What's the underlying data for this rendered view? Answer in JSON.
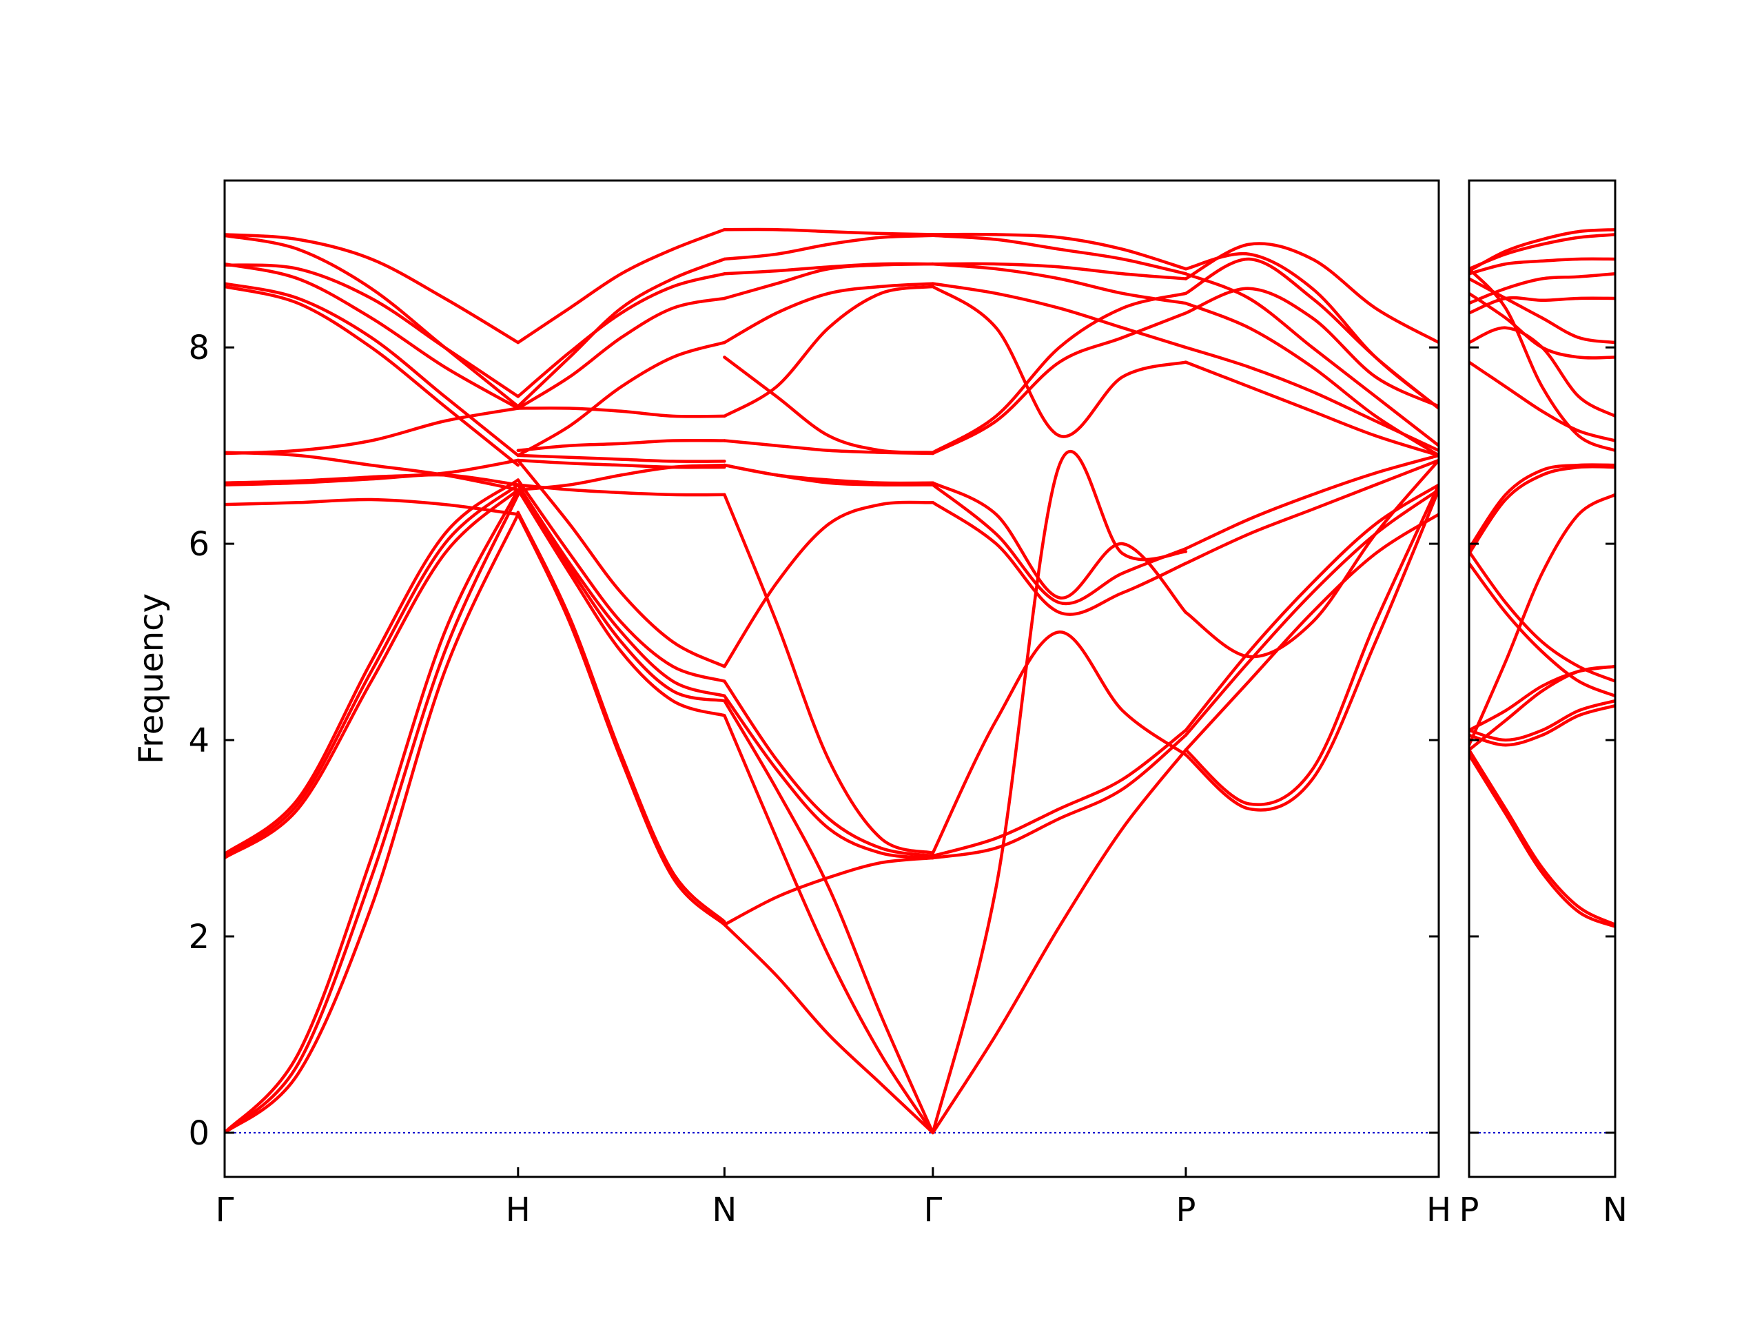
{
  "chart_data": {
    "type": "line",
    "ylabel": "Frequency",
    "xlabel": "",
    "ylim": [
      -0.45,
      9.7
    ],
    "yticks": [
      0,
      2,
      4,
      6,
      8
    ],
    "grid": false,
    "band_color": "#ff0000",
    "zero_line_color": "#0000cc",
    "panels": [
      {
        "name": "main",
        "xlim": [
          0,
          6
        ],
        "xticks": [
          {
            "label": "Γ",
            "x": 0.0
          },
          {
            "label": "H",
            "x": 1.45
          },
          {
            "label": "N",
            "x": 2.47
          },
          {
            "label": "Γ",
            "x": 3.5
          },
          {
            "label": "P",
            "x": 4.75
          },
          {
            "label": "H",
            "x": 6.0
          }
        ],
        "segments": [
          {
            "x0": 0.0,
            "x1": 1.45,
            "bands": [
              [
                0,
                0.6,
                2.3,
                4.7,
                6.3
              ],
              [
                0,
                0.7,
                2.6,
                4.9,
                6.5
              ],
              [
                0,
                0.8,
                2.8,
                5.1,
                6.55
              ],
              [
                2.8,
                3.3,
                4.6,
                5.9,
                6.55
              ],
              [
                2.82,
                3.35,
                4.7,
                6.0,
                6.6
              ],
              [
                2.84,
                3.4,
                4.8,
                6.1,
                6.65
              ],
              [
                6.4,
                6.42,
                6.45,
                6.4,
                6.3
              ],
              [
                6.6,
                6.62,
                6.66,
                6.7,
                6.6
              ],
              [
                6.62,
                6.64,
                6.68,
                6.72,
                6.85
              ],
              [
                6.92,
                6.95,
                7.05,
                7.25,
                7.38
              ],
              [
                6.93,
                6.9,
                6.8,
                6.7,
                6.55
              ],
              [
                8.65,
                8.5,
                8.1,
                7.5,
                6.9
              ],
              [
                8.62,
                8.45,
                8.0,
                7.4,
                6.8
              ],
              [
                8.85,
                8.7,
                8.3,
                7.8,
                7.38
              ],
              [
                8.84,
                8.8,
                8.5,
                8.0,
                7.5
              ],
              [
                9.15,
                9.1,
                8.9,
                8.5,
                8.05
              ],
              [
                9.14,
                9.0,
                8.6,
                8.0,
                7.4
              ]
            ]
          },
          {
            "x0": 1.45,
            "x1": 2.47,
            "bands": [
              [
                6.3,
                5.2,
                3.8,
                2.6,
                2.12
              ],
              [
                6.32,
                5.25,
                3.85,
                2.65,
                2.15
              ],
              [
                6.55,
                5.7,
                4.9,
                4.4,
                4.25
              ],
              [
                6.55,
                5.75,
                5.0,
                4.5,
                4.4
              ],
              [
                6.6,
                5.8,
                5.1,
                4.6,
                4.45
              ],
              [
                6.65,
                5.9,
                5.2,
                4.75,
                4.6
              ],
              [
                6.85,
                6.2,
                5.5,
                5.0,
                4.75
              ],
              [
                6.6,
                6.55,
                6.52,
                6.5,
                6.5
              ],
              [
                6.55,
                6.6,
                6.7,
                6.78,
                6.8
              ],
              [
                6.85,
                6.82,
                6.8,
                6.78,
                6.78
              ],
              [
                6.9,
                6.88,
                6.86,
                6.84,
                6.84
              ],
              [
                6.95,
                7.0,
                7.02,
                7.05,
                7.05
              ],
              [
                7.38,
                7.38,
                7.35,
                7.3,
                7.3
              ],
              [
                6.9,
                7.2,
                7.6,
                7.9,
                8.05
              ],
              [
                7.38,
                7.7,
                8.1,
                8.4,
                8.5
              ],
              [
                7.5,
                7.95,
                8.35,
                8.62,
                8.75
              ],
              [
                8.05,
                8.4,
                8.75,
                9.0,
                9.2
              ],
              [
                7.4,
                7.9,
                8.4,
                8.7,
                8.9
              ]
            ]
          },
          {
            "x0": 2.47,
            "x1": 3.5,
            "bands": [
              [
                2.12,
                1.6,
                1.0,
                0.5,
                0
              ],
              [
                2.12,
                2.4,
                2.6,
                2.75,
                2.8
              ],
              [
                4.25,
                3.0,
                1.8,
                0.8,
                0
              ],
              [
                4.4,
                3.5,
                2.5,
                1.2,
                0
              ],
              [
                4.45,
                3.7,
                3.1,
                2.85,
                2.8
              ],
              [
                4.6,
                3.8,
                3.2,
                2.9,
                2.82
              ],
              [
                4.75,
                5.6,
                6.2,
                6.4,
                6.42
              ],
              [
                6.5,
                5.2,
                3.8,
                3.0,
                2.85
              ],
              [
                6.8,
                6.7,
                6.62,
                6.6,
                6.6
              ],
              [
                6.8,
                6.7,
                6.65,
                6.62,
                6.62
              ],
              [
                7.05,
                7.0,
                6.95,
                6.93,
                6.92
              ],
              [
                7.3,
                7.6,
                8.2,
                8.55,
                8.62
              ],
              [
                7.9,
                7.5,
                7.1,
                6.95,
                6.93
              ],
              [
                8.05,
                8.35,
                8.55,
                8.62,
                8.65
              ],
              [
                8.5,
                8.65,
                8.8,
                8.84,
                8.85
              ],
              [
                8.75,
                8.78,
                8.82,
                8.85,
                8.85
              ],
              [
                8.9,
                8.95,
                9.05,
                9.12,
                9.14
              ],
              [
                9.2,
                9.2,
                9.18,
                9.16,
                9.15
              ]
            ]
          },
          {
            "x0": 3.5,
            "x1": 4.75,
            "bands": [
              [
                0,
                1.0,
                2.1,
                3.1,
                3.9
              ],
              [
                0,
                2.5,
                6.8,
                5.9,
                5.92
              ],
              [
                2.8,
                2.9,
                3.2,
                3.5,
                4.05
              ],
              [
                2.82,
                3.0,
                3.3,
                3.6,
                4.1
              ],
              [
                2.85,
                4.2,
                5.1,
                4.3,
                3.85
              ],
              [
                6.42,
                6.0,
                5.3,
                5.5,
                5.8
              ],
              [
                6.6,
                6.1,
                5.4,
                5.7,
                5.95
              ],
              [
                6.62,
                6.3,
                5.45,
                6.0,
                5.3
              ],
              [
                8.62,
                8.2,
                7.1,
                7.7,
                7.85
              ],
              [
                6.93,
                7.3,
                8.0,
                8.4,
                8.55
              ],
              [
                6.92,
                7.25,
                7.85,
                8.1,
                8.35
              ],
              [
                8.65,
                8.55,
                8.4,
                8.2,
                8.0
              ],
              [
                8.85,
                8.8,
                8.7,
                8.55,
                8.45
              ],
              [
                8.85,
                8.85,
                8.82,
                8.75,
                8.7
              ],
              [
                9.14,
                9.1,
                9.0,
                8.9,
                8.75
              ],
              [
                9.15,
                9.15,
                9.12,
                9.0,
                8.8
              ]
            ]
          },
          {
            "x0": 4.75,
            "x1": 6.0,
            "bands": [
              [
                3.9,
                4.6,
                5.3,
                5.9,
                6.3
              ],
              [
                4.05,
                4.8,
                5.5,
                6.1,
                6.55
              ],
              [
                4.1,
                4.9,
                5.6,
                6.2,
                6.6
              ],
              [
                3.85,
                3.3,
                3.6,
                5.0,
                6.55
              ],
              [
                3.9,
                3.35,
                3.7,
                5.2,
                6.6
              ],
              [
                5.8,
                6.1,
                6.35,
                6.6,
                6.85
              ],
              [
                5.95,
                6.25,
                6.5,
                6.72,
                6.9
              ],
              [
                5.3,
                4.85,
                5.2,
                6.1,
                6.85
              ],
              [
                7.85,
                7.6,
                7.35,
                7.1,
                6.9
              ],
              [
                8.55,
                8.9,
                8.5,
                7.9,
                7.38
              ],
              [
                8.35,
                8.6,
                8.3,
                7.7,
                7.4
              ],
              [
                8.0,
                7.8,
                7.55,
                7.25,
                6.95
              ],
              [
                8.45,
                8.2,
                7.8,
                7.3,
                6.9
              ],
              [
                8.7,
                9.05,
                8.9,
                8.4,
                8.05
              ],
              [
                8.75,
                8.5,
                8.0,
                7.5,
                7.0
              ],
              [
                8.8,
                8.95,
                8.6,
                7.9,
                7.38
              ]
            ]
          }
        ]
      },
      {
        "name": "right",
        "xlim": [
          0,
          1
        ],
        "xticks": [
          {
            "label": "P",
            "x": 0.0
          },
          {
            "label": "N",
            "x": 1.0
          }
        ],
        "segments": [
          {
            "x0": 0.0,
            "x1": 1.0,
            "bands": [
              [
                3.9,
                3.3,
                2.7,
                2.3,
                2.12
              ],
              [
                3.85,
                3.25,
                2.65,
                2.25,
                2.1
              ],
              [
                4.1,
                4.0,
                4.1,
                4.3,
                4.4
              ],
              [
                4.05,
                3.95,
                4.05,
                4.25,
                4.35
              ],
              [
                3.9,
                4.2,
                4.5,
                4.7,
                4.75
              ],
              [
                4.1,
                4.3,
                4.55,
                4.7,
                4.75
              ],
              [
                5.92,
                5.4,
                5.0,
                4.75,
                4.6
              ],
              [
                5.8,
                5.3,
                4.9,
                4.6,
                4.45
              ],
              [
                3.95,
                4.8,
                5.7,
                6.3,
                6.5
              ],
              [
                5.95,
                6.5,
                6.75,
                6.8,
                6.8
              ],
              [
                5.9,
                6.45,
                6.7,
                6.78,
                6.78
              ],
              [
                7.85,
                7.6,
                7.35,
                7.15,
                7.05
              ],
              [
                8.05,
                8.2,
                8.0,
                7.5,
                7.3
              ],
              [
                8.55,
                8.3,
                8.0,
                7.9,
                7.9
              ],
              [
                8.35,
                8.5,
                8.48,
                8.5,
                8.5
              ],
              [
                8.7,
                8.5,
                8.3,
                8.1,
                8.05
              ],
              [
                8.45,
                8.6,
                8.7,
                8.72,
                8.75
              ],
              [
                8.75,
                8.85,
                8.88,
                8.9,
                8.9
              ],
              [
                8.8,
                8.95,
                9.05,
                9.12,
                9.15
              ],
              [
                8.78,
                8.98,
                9.1,
                9.18,
                9.2
              ],
              [
                8.8,
                8.4,
                7.6,
                7.1,
                6.95
              ]
            ]
          }
        ]
      }
    ]
  }
}
